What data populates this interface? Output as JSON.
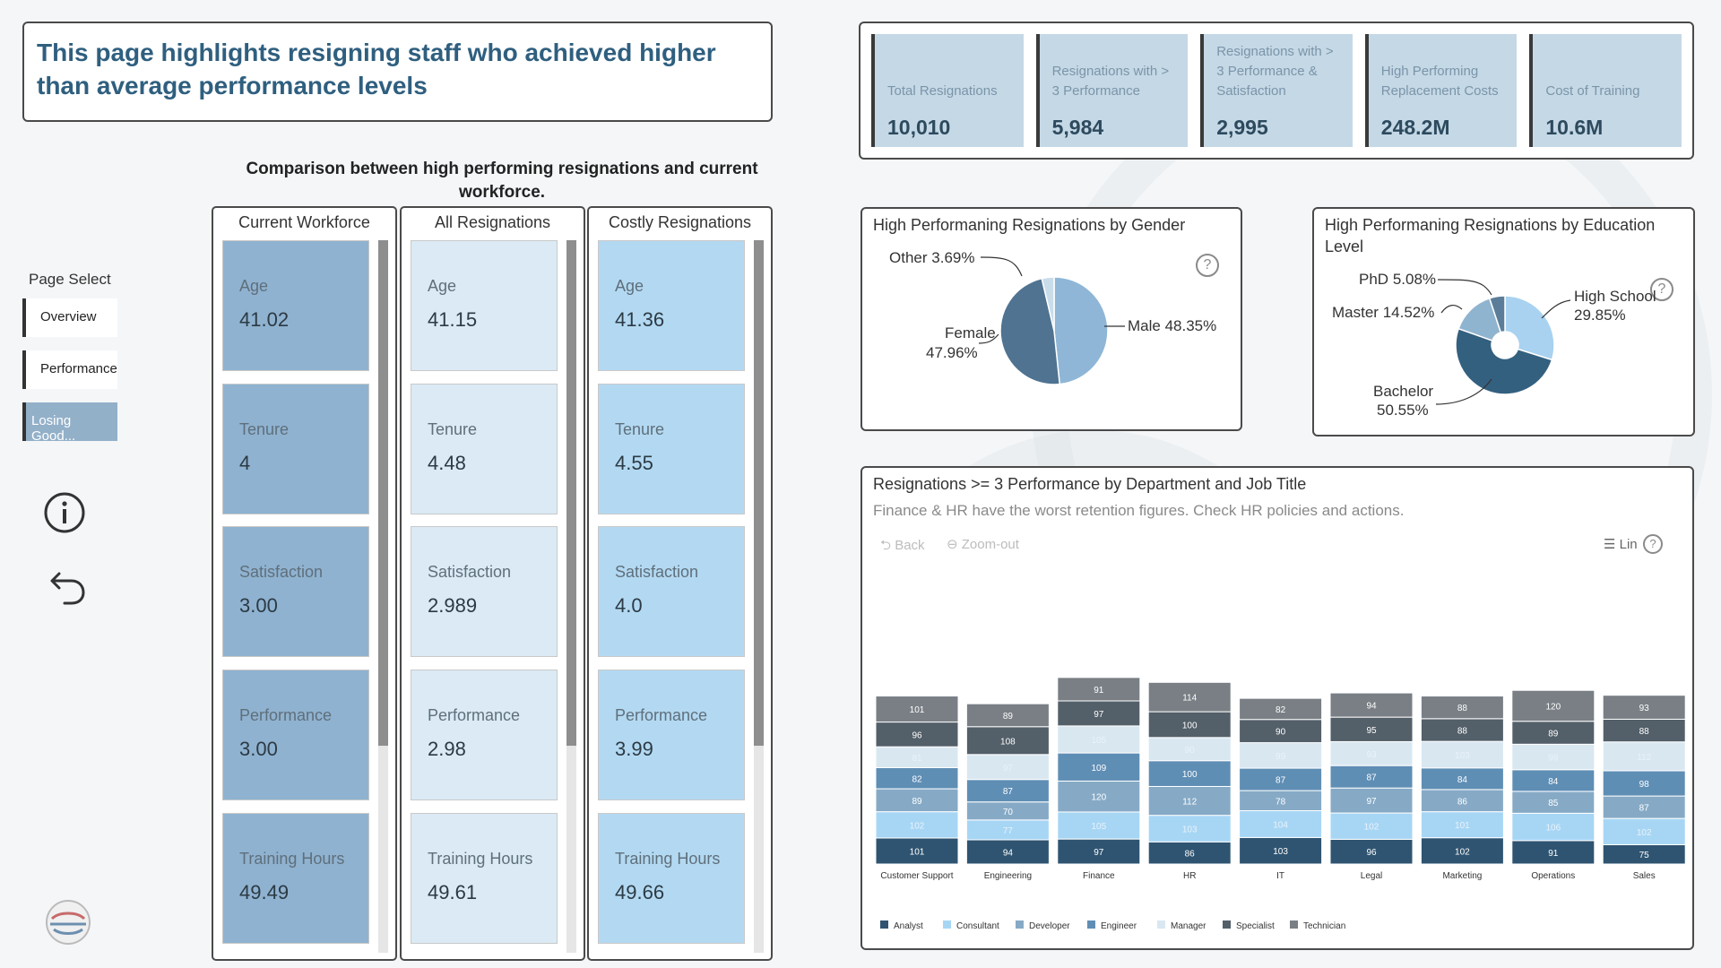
{
  "header": {
    "title": "This page highlights resigning staff who achieved higher than average performance levels"
  },
  "kpis": [
    {
      "label": "Total Resignations",
      "value": "10,010"
    },
    {
      "label": "Resignations with > 3 Performance",
      "value": "5,984"
    },
    {
      "label": "Resignations with > 3 Performance & Satisfaction",
      "value": "2,995"
    },
    {
      "label": "High Performing Replacement Costs",
      "value": "248.2M"
    },
    {
      "label": "Cost of Training",
      "value": "10.6M"
    }
  ],
  "comparison": {
    "title": "Comparison between high performing resignations and current workforce.",
    "columns": [
      {
        "name": "Current Workforce",
        "color": "#8fb2d0",
        "cards": [
          {
            "label": "Age",
            "value": "41.02"
          },
          {
            "label": "Tenure",
            "value": "4"
          },
          {
            "label": "Satisfaction",
            "value": "3.00"
          },
          {
            "label": "Performance",
            "value": "3.00"
          },
          {
            "label": "Training Hours",
            "value": "49.49"
          }
        ]
      },
      {
        "name": "All Resignations",
        "color": "#dbeaf5",
        "cards": [
          {
            "label": "Age",
            "value": "41.15"
          },
          {
            "label": "Tenure",
            "value": "4.48"
          },
          {
            "label": "Satisfaction",
            "value": "2.989"
          },
          {
            "label": "Performance",
            "value": "2.98"
          },
          {
            "label": "Training Hours",
            "value": "49.61"
          }
        ]
      },
      {
        "name": "Costly Resignations",
        "color": "#b3d9f2",
        "cards": [
          {
            "label": "Age",
            "value": "41.36"
          },
          {
            "label": "Tenure",
            "value": "4.55"
          },
          {
            "label": "Satisfaction",
            "value": "4.0"
          },
          {
            "label": "Performance",
            "value": "3.99"
          },
          {
            "label": "Training Hours",
            "value": "49.66"
          }
        ]
      }
    ]
  },
  "nav": {
    "title": "Page Select",
    "items": [
      "Overview",
      "Performance",
      "Losing Good..."
    ]
  },
  "gender_chart": {
    "title": "High Performaning Resignations by Gender",
    "slices": [
      {
        "label": "Male",
        "pct": "48.35%",
        "value": 48.35,
        "color": "#8fb6d6"
      },
      {
        "label": "Female",
        "pct": "47.96%",
        "value": 47.96,
        "color": "#4f7391"
      },
      {
        "label": "Other",
        "pct": "3.69%",
        "value": 3.69,
        "color": "#c9dcea"
      }
    ]
  },
  "edu_chart": {
    "title": "High Performaning Resignations by Education Level",
    "slices": [
      {
        "label": "High School",
        "pct": "29.85%",
        "value": 29.85,
        "color": "#a8d2f0"
      },
      {
        "label": "Bachelor",
        "pct": "50.55%",
        "value": 50.55,
        "color": "#34607f"
      },
      {
        "label": "Master",
        "pct": "14.52%",
        "value": 14.52,
        "color": "#8fb4d0"
      },
      {
        "label": "PhD",
        "pct": "5.08%",
        "value": 5.08,
        "color": "#5c7d99"
      }
    ]
  },
  "dept_chart": {
    "title": "Resignations >= 3 Performance by Department and Job Title",
    "subtitle": "Finance & HR have the worst retention figures. Check HR policies and actions.",
    "toolbar": {
      "back": "Back",
      "zoom": "Zoom-out",
      "lin": "Lin"
    }
  },
  "chart_data": {
    "type": "bar",
    "stacked": true,
    "categories": [
      "Customer Support",
      "Engineering",
      "Finance",
      "HR",
      "IT",
      "Legal",
      "Marketing",
      "Operations",
      "Sales"
    ],
    "series": [
      {
        "name": "Analyst",
        "color": "#2f5471",
        "values": [
          101,
          94,
          97,
          86,
          103,
          96,
          102,
          91,
          75
        ]
      },
      {
        "name": "Consultant",
        "color": "#a7d6f5",
        "values": [
          102,
          77,
          105,
          103,
          104,
          102,
          101,
          106,
          102
        ]
      },
      {
        "name": "Developer",
        "color": "#86aac6",
        "values": [
          89,
          70,
          120,
          112,
          78,
          97,
          86,
          85,
          87
        ]
      },
      {
        "name": "Engineer",
        "color": "#5f8eb5",
        "values": [
          82,
          87,
          109,
          100,
          87,
          87,
          84,
          84,
          98
        ]
      },
      {
        "name": "Manager",
        "color": "#d9e7f1",
        "values": [
          81,
          97,
          105,
          90,
          99,
          93,
          103,
          99,
          112
        ]
      },
      {
        "name": "Specialist",
        "color": "#535f69",
        "values": [
          96,
          108,
          97,
          100,
          90,
          95,
          88,
          89,
          88
        ]
      },
      {
        "name": "Technician",
        "color": "#797f85",
        "values": [
          101,
          89,
          91,
          114,
          82,
          94,
          88,
          120,
          93
        ]
      }
    ],
    "legend": "bottom-left"
  }
}
